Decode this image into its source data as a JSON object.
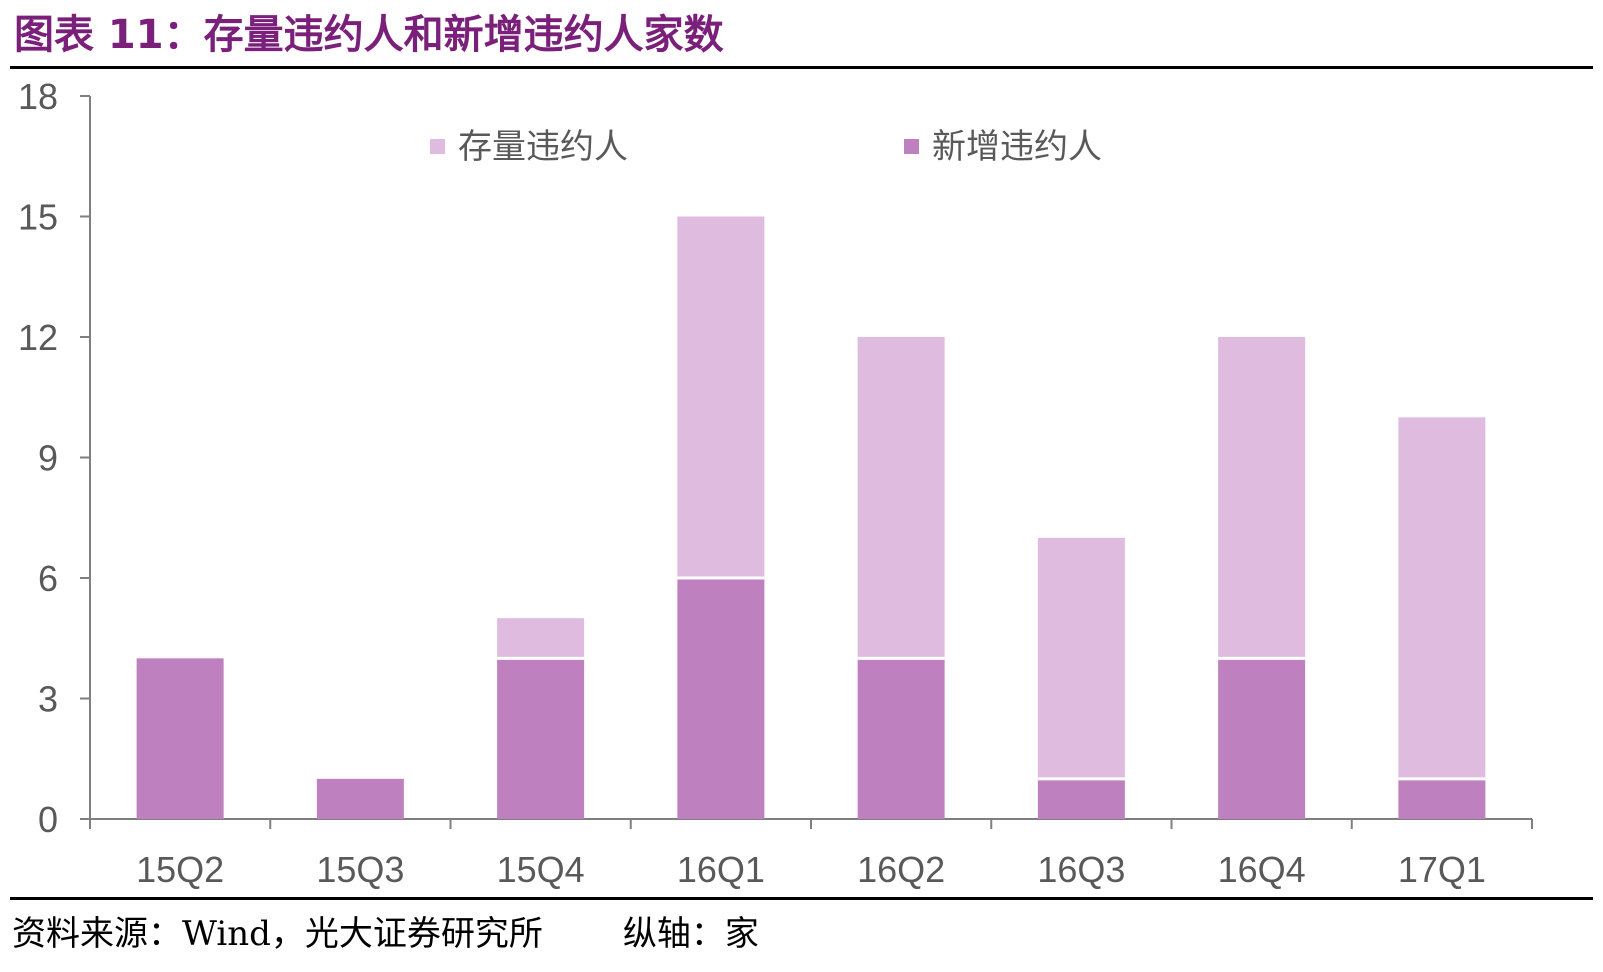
{
  "title": "图表 11：存量违约人和新增违约人家数",
  "footer": {
    "source": "资料来源：Wind，光大证券研究所",
    "unit": "纵轴：家"
  },
  "colors": {
    "existing": "#dfbcdf",
    "new": "#bf80c0",
    "title": "#7a1f7a",
    "axis": "#7f7f7f",
    "text": "#595959"
  },
  "chart_data": {
    "type": "bar",
    "stacked": true,
    "categories": [
      "15Q2",
      "15Q3",
      "15Q4",
      "16Q1",
      "16Q2",
      "16Q3",
      "16Q4",
      "17Q1"
    ],
    "series": [
      {
        "name": "新增违约人",
        "values": [
          4,
          1,
          4,
          6,
          4,
          1,
          4,
          1
        ]
      },
      {
        "name": "存量违约人",
        "values": [
          0,
          0,
          1,
          9,
          8,
          6,
          8,
          9
        ]
      }
    ],
    "ylim": [
      0,
      18
    ],
    "yticks": [
      "0",
      "3",
      "6",
      "9",
      "12",
      "15",
      "18"
    ],
    "legend": "top-center",
    "grid": false
  }
}
